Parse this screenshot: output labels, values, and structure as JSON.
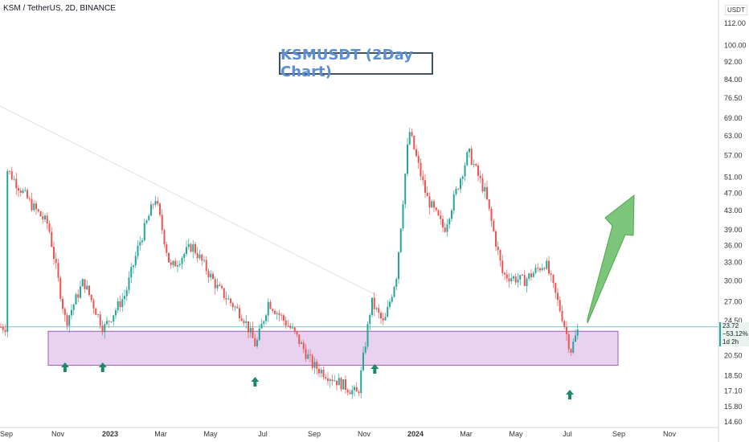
{
  "header": {
    "symbol_line": "KSM / TetherUS, 2D, BINANCE",
    "currency": "USDT"
  },
  "annotation": {
    "title": "KSMUSDT (2Day Chart)"
  },
  "price_tag": {
    "price": "23.72",
    "change": "−53.12%",
    "countdown": "1d 2h"
  },
  "colors": {
    "up": "#26a69a",
    "down": "#ef5350",
    "zone_fill": "#e7cdee",
    "zone_border": "#a05bb5",
    "arrow_green": "#1a8a6a",
    "big_arrow": "#7bc67b",
    "current_line": "#26a69a"
  },
  "chart_data": {
    "type": "candlestick",
    "title": "KSMUSDT (2Day Chart)",
    "symbol": "KSM / TetherUS",
    "interval": "2D",
    "exchange": "BINANCE",
    "y_scale": "log",
    "ylim": [
      14.0,
      125.0
    ],
    "y_ticks": [
      "112.00",
      "100.00",
      "92.00",
      "84.00",
      "76.50",
      "69.00",
      "63.00",
      "57.00",
      "51.00",
      "47.00",
      "43.00",
      "39.00",
      "36.00",
      "33.00",
      "30.00",
      "27.00",
      "24.50",
      "20.50",
      "18.50",
      "17.10",
      "15.80",
      "14.60"
    ],
    "x_ticks": [
      {
        "label": "Sep",
        "bold": false
      },
      {
        "label": "Nov",
        "bold": false
      },
      {
        "label": "2023",
        "bold": true
      },
      {
        "label": "Mar",
        "bold": false
      },
      {
        "label": "May",
        "bold": false
      },
      {
        "label": "Jul",
        "bold": false
      },
      {
        "label": "Sep",
        "bold": false
      },
      {
        "label": "Nov",
        "bold": false
      },
      {
        "label": "2024",
        "bold": true
      },
      {
        "label": "Mar",
        "bold": false
      },
      {
        "label": "May",
        "bold": false
      },
      {
        "label": "Jul",
        "bold": false
      },
      {
        "label": "Sep",
        "bold": false
      },
      {
        "label": "Nov",
        "bold": false
      }
    ],
    "current_price": 23.72,
    "support_zone": [
      19.5,
      23.2
    ],
    "approx_close_path": [
      {
        "date": "2022-09",
        "close": 53
      },
      {
        "date": "2022-10",
        "close": 44
      },
      {
        "date": "2022-10-20",
        "close": 40
      },
      {
        "date": "2022-11-10",
        "close": 24.2
      },
      {
        "date": "2022-12-01",
        "close": 30
      },
      {
        "date": "2022-12-25",
        "close": 23.5
      },
      {
        "date": "2023-01-20",
        "close": 28
      },
      {
        "date": "2023-02-05",
        "close": 36
      },
      {
        "date": "2023-02-25",
        "close": 46
      },
      {
        "date": "2023-03-15",
        "close": 32
      },
      {
        "date": "2023-04-10",
        "close": 36
      },
      {
        "date": "2023-05-10",
        "close": 29
      },
      {
        "date": "2023-06-10",
        "close": 25
      },
      {
        "date": "2023-06-25",
        "close": 21.5
      },
      {
        "date": "2023-07-10",
        "close": 27
      },
      {
        "date": "2023-08-10",
        "close": 23
      },
      {
        "date": "2023-09-01",
        "close": 19.5
      },
      {
        "date": "2023-10-10",
        "close": 17.5
      },
      {
        "date": "2023-10-25",
        "close": 16.8
      },
      {
        "date": "2023-11-10",
        "close": 27
      },
      {
        "date": "2023-11-25",
        "close": 24
      },
      {
        "date": "2023-12-10",
        "close": 31
      },
      {
        "date": "2023-12-25",
        "close": 65
      },
      {
        "date": "2024-01-15",
        "close": 46
      },
      {
        "date": "2024-02-05",
        "close": 39
      },
      {
        "date": "2024-03-05",
        "close": 58
      },
      {
        "date": "2024-03-25",
        "close": 47
      },
      {
        "date": "2024-04-15",
        "close": 31
      },
      {
        "date": "2024-05-10",
        "close": 30
      },
      {
        "date": "2024-06-05",
        "close": 33
      },
      {
        "date": "2024-06-25",
        "close": 25
      },
      {
        "date": "2024-07-05",
        "close": 21
      },
      {
        "date": "2024-07-15",
        "close": 23.72
      }
    ],
    "support_touches": [
      "2022-11-10",
      "2022-12-25",
      "2023-06-25",
      "2023-11-15",
      "2024-07-05"
    ]
  }
}
